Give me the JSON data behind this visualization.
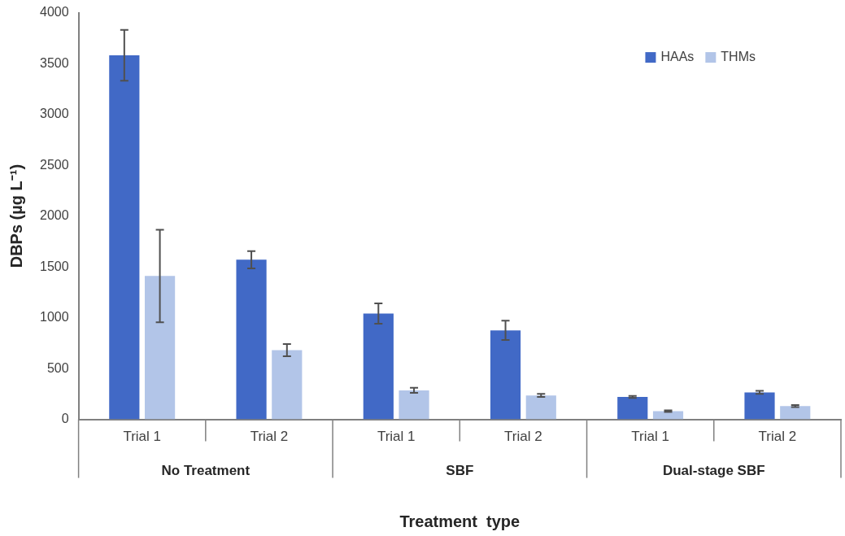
{
  "chart_data": {
    "type": "bar",
    "xlabel": "Treatment  type",
    "ylabel": "DBPs (µg L⁻¹)",
    "categories": [
      "Trial 1",
      "Trial 2",
      "Trial 1",
      "Trial 2",
      "Trial 1",
      "Trial 2"
    ],
    "annotations": [
      "No Treatment",
      "SBF",
      "Dual-stage SBF"
    ],
    "series": [
      {
        "name": "HAAs",
        "color": "#4169c6",
        "values": [
          3580,
          1570,
          1040,
          875,
          220,
          265
        ],
        "errors": [
          250,
          85,
          100,
          95,
          10,
          15
        ]
      },
      {
        "name": "THMs",
        "color": "#b2c5e8",
        "values": [
          1410,
          680,
          285,
          235,
          80,
          130
        ],
        "errors": [
          455,
          60,
          25,
          15,
          8,
          10
        ]
      }
    ],
    "ylim": [
      0,
      4000
    ],
    "yticks": [
      0,
      500,
      1000,
      1500,
      2000,
      2500,
      3000,
      3500,
      4000
    ],
    "grid": false,
    "legend": "top right"
  }
}
